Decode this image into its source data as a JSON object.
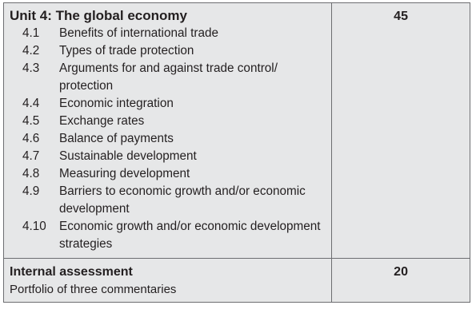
{
  "unit": {
    "title": "Unit 4: The global economy",
    "hours": "45",
    "subtopics": [
      {
        "number": "4.1",
        "text": "Benefits of international trade"
      },
      {
        "number": "4.2",
        "text": "Types of trade protection"
      },
      {
        "number": "4.3",
        "text": "Arguments for and against trade control/ protection"
      },
      {
        "number": "4.4",
        "text": "Economic integration"
      },
      {
        "number": "4.5",
        "text": "Exchange rates"
      },
      {
        "number": "4.6",
        "text": "Balance of payments"
      },
      {
        "number": "4.7",
        "text": "Sustainable development"
      },
      {
        "number": "4.8",
        "text": "Measuring development"
      },
      {
        "number": "4.9",
        "text": "Barriers to economic growth and/or economic development"
      },
      {
        "number": "4.10",
        "text": "Economic growth and/or economic development strategies"
      }
    ]
  },
  "internal_assessment": {
    "title": "Internal assessment",
    "subtitle": "Portfolio of three commentaries",
    "hours": "20"
  },
  "colors": {
    "cell_background": "#e6e7e8",
    "border": "#6d6e71",
    "text": "#231f20"
  }
}
